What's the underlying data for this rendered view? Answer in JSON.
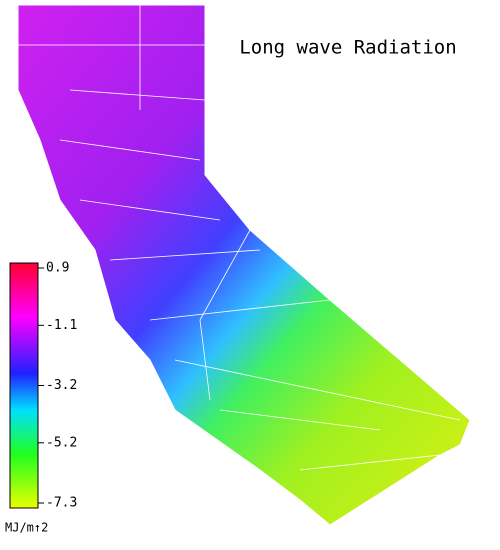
{
  "title": "Long wave Radiation",
  "colorbar": {
    "ticks": [
      0.9,
      -1.1,
      -3.2,
      -5.2,
      -7.3
    ],
    "unit": "MJ/m↑2"
  }
}
